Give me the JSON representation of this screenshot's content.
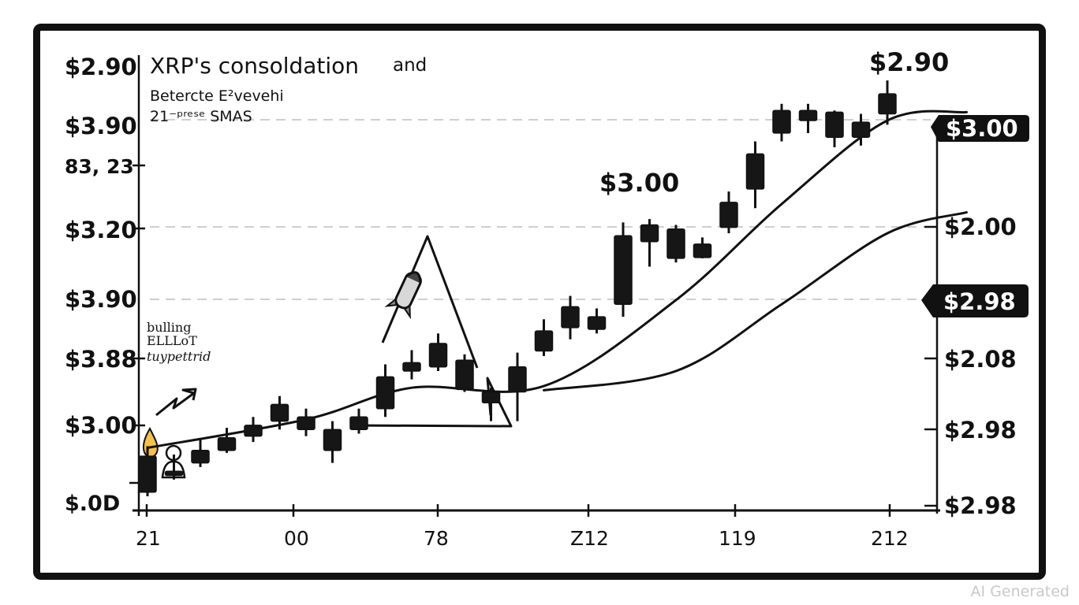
{
  "chart_data": {
    "type": "candlestick",
    "title": "XRP's consoldation",
    "title_suffix": "and",
    "subtitle_lines": [
      "Betercte E²vevehi",
      "21⁻ᵖʳᵉˢᵉ SMAS"
    ],
    "pattern_note": [
      "bulling",
      "ELLLoT",
      "tuypettrid"
    ],
    "left_ticks": [
      "$2.90",
      "$3.90",
      "83, 23",
      "$3.20",
      "$3.90",
      "$3.88",
      "$3.00",
      "$.0D"
    ],
    "right_ticks": [
      "$2.00",
      "$2.08",
      "$2.98",
      "$2.98"
    ],
    "right_badges": [
      "$3.00",
      "$2.98"
    ],
    "x_ticks": [
      "21",
      "00",
      "78",
      "Z12",
      "119",
      "212"
    ],
    "annotations": [
      "$2.90",
      "$3.00"
    ],
    "grid": "dashed",
    "candles": [
      {
        "o": 2.948,
        "h": 2.96,
        "l": 2.9,
        "c": 2.905
      },
      {
        "o": 2.93,
        "h": 2.95,
        "l": 2.92,
        "c": 2.925
      },
      {
        "o": 2.955,
        "h": 2.968,
        "l": 2.935,
        "c": 2.94
      },
      {
        "o": 2.97,
        "h": 2.982,
        "l": 2.952,
        "c": 2.955
      },
      {
        "o": 2.985,
        "h": 2.995,
        "l": 2.965,
        "c": 2.972
      },
      {
        "o": 3.01,
        "h": 3.02,
        "l": 2.98,
        "c": 2.99
      },
      {
        "o": 2.995,
        "h": 3.005,
        "l": 2.972,
        "c": 2.98
      },
      {
        "o": 2.98,
        "h": 2.99,
        "l": 2.94,
        "c": 2.955
      },
      {
        "o": 2.995,
        "h": 3.005,
        "l": 2.975,
        "c": 2.98
      },
      {
        "o": 3.043,
        "h": 3.058,
        "l": 2.995,
        "c": 3.005
      },
      {
        "o": 3.06,
        "h": 3.075,
        "l": 3.04,
        "c": 3.05
      },
      {
        "o": 3.083,
        "h": 3.095,
        "l": 3.05,
        "c": 3.055
      },
      {
        "o": 3.063,
        "h": 3.07,
        "l": 3.025,
        "c": 3.028
      },
      {
        "o": 3.025,
        "h": 3.03,
        "l": 2.99,
        "c": 3.012
      },
      {
        "o": 3.055,
        "h": 3.072,
        "l": 2.99,
        "c": 3.025
      },
      {
        "o": 3.098,
        "h": 3.112,
        "l": 3.068,
        "c": 3.074
      },
      {
        "o": 3.127,
        "h": 3.14,
        "l": 3.088,
        "c": 3.102
      },
      {
        "o": 3.115,
        "h": 3.125,
        "l": 3.095,
        "c": 3.1
      },
      {
        "o": 3.212,
        "h": 3.228,
        "l": 3.115,
        "c": 3.13
      },
      {
        "o": 3.225,
        "h": 3.232,
        "l": 3.175,
        "c": 3.205
      },
      {
        "o": 3.22,
        "h": 3.225,
        "l": 3.18,
        "c": 3.185
      },
      {
        "o": 3.202,
        "h": 3.21,
        "l": 3.185,
        "c": 3.186
      },
      {
        "o": 3.252,
        "h": 3.265,
        "l": 3.215,
        "c": 3.222
      },
      {
        "o": 3.31,
        "h": 3.325,
        "l": 3.245,
        "c": 3.268
      },
      {
        "o": 3.362,
        "h": 3.37,
        "l": 3.325,
        "c": 3.335
      },
      {
        "o": 3.362,
        "h": 3.37,
        "l": 3.335,
        "c": 3.35
      },
      {
        "o": 3.36,
        "h": 3.362,
        "l": 3.318,
        "c": 3.33
      },
      {
        "o": 3.348,
        "h": 3.358,
        "l": 3.32,
        "c": 3.33
      },
      {
        "o": 3.382,
        "h": 3.398,
        "l": 3.345,
        "c": 3.358
      }
    ],
    "sma_fast": [
      [
        0,
        2.958
      ],
      [
        6,
        2.992
      ],
      [
        10,
        3.03
      ],
      [
        15,
        3.032
      ],
      [
        20,
        3.135
      ],
      [
        24,
        3.25
      ],
      [
        28,
        3.35
      ],
      [
        31,
        3.36
      ]
    ],
    "sma_slow": [
      [
        15,
        3.027
      ],
      [
        20,
        3.05
      ],
      [
        24,
        3.13
      ],
      [
        28,
        3.215
      ],
      [
        31,
        3.24
      ]
    ]
  }
}
